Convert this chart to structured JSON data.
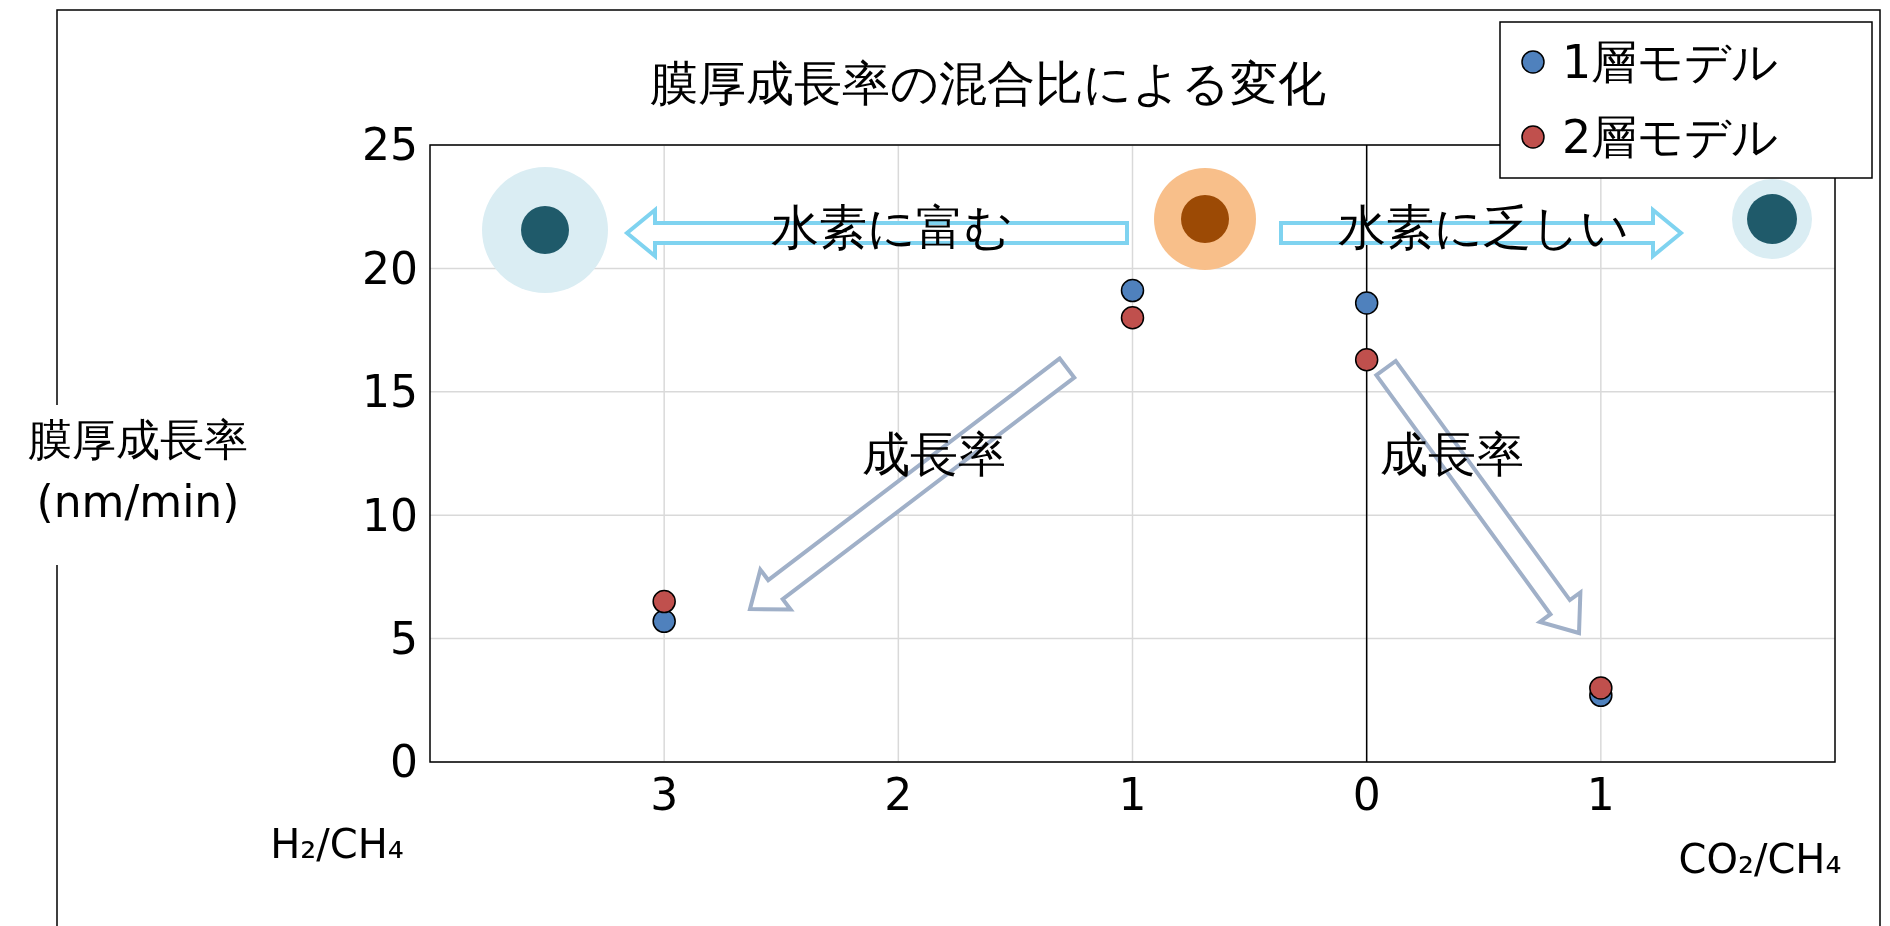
{
  "chart_data": {
    "type": "scatter",
    "title": "膜厚成長率の混合比による変化",
    "xlabel": "H₂/CH₄",
    "ylabel": "膜厚成長率\n(nm/min)",
    "xlim": [
      -4,
      2
    ],
    "xticks": [
      {
        "value": -3,
        "label": "3"
      },
      {
        "value": -2,
        "label": "2"
      },
      {
        "value": -1,
        "label": "1"
      },
      {
        "value": 0,
        "label": "0"
      },
      {
        "value": 1,
        "label": "1"
      }
    ],
    "ylim": [
      0,
      25
    ],
    "yticks": [
      0,
      5,
      10,
      15,
      20,
      25
    ],
    "grid": true,
    "legend": "top right",
    "marker": "circle",
    "ref_lines": [
      {
        "axis": "x",
        "value": 0,
        "color": "#000000"
      }
    ],
    "annotations": [
      "水素に富む",
      "水素に乏しい",
      "成長率",
      "成長率",
      "CO₂/CH₄"
    ],
    "series": [
      {
        "name": "1層モデル",
        "color": "#4f81bd",
        "x": [
          -3,
          -1,
          0,
          1
        ],
        "values": [
          5.7,
          19.1,
          18.6,
          2.7
        ]
      },
      {
        "name": "2層モデル",
        "color": "#c0504d",
        "x": [
          -3,
          -1,
          0,
          1
        ],
        "values": [
          6.5,
          18.0,
          16.3,
          3.0
        ]
      }
    ]
  }
}
